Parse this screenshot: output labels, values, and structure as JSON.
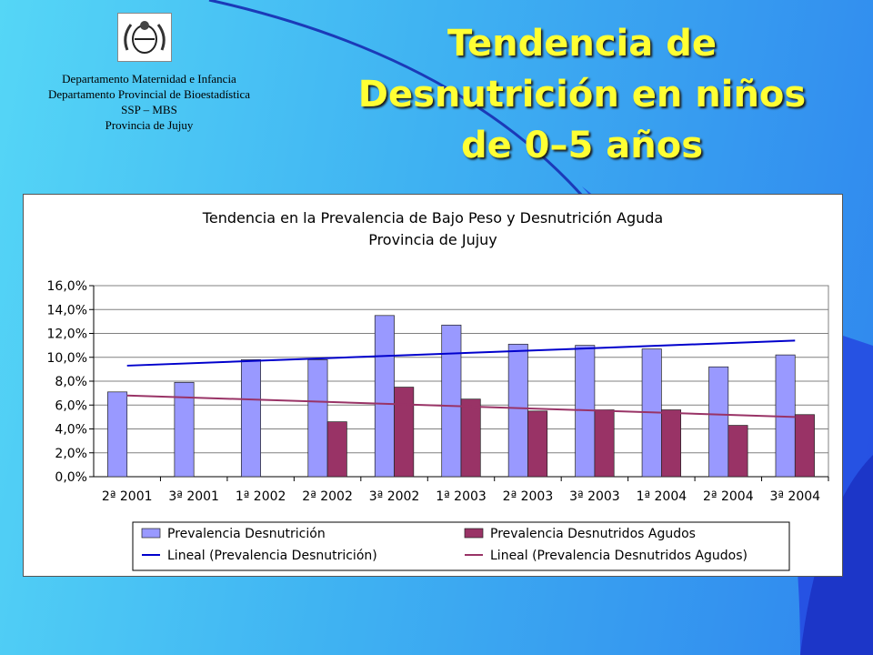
{
  "header": {
    "dept_lines": [
      "Departamento Maternidad e Infancia",
      "Departamento Provincial de Bioestadística",
      "SSP – MBS",
      "Provincia de Jujuy"
    ],
    "title_lines": [
      "Tendencia de",
      "Desnutrición en niños",
      "de 0–5 años"
    ]
  },
  "colors": {
    "bar1": "#9999ff",
    "bar2": "#993366",
    "trend1": "#0000cc",
    "trend2": "#993366",
    "title": "#ffff33"
  },
  "chart_data": {
    "type": "bar",
    "title": [
      "Tendencia en la Prevalencia de Bajo Peso y Desnutrición Aguda",
      "Provincia de Jujuy"
    ],
    "categories": [
      "2ª 2001",
      "3ª 2001",
      "1ª 2002",
      "2ª 2002",
      "3ª 2002",
      "1ª 2003",
      "2ª 2003",
      "3ª 2003",
      "1ª 2004",
      "2ª 2004",
      "3ª 2004"
    ],
    "series": [
      {
        "name": "Prevalencia Desnutrición",
        "values": [
          7.1,
          7.9,
          9.8,
          9.8,
          13.5,
          12.7,
          11.1,
          11.0,
          10.7,
          9.2,
          10.2
        ]
      },
      {
        "name": "Prevalencia Desnutridos Agudos",
        "values": [
          null,
          null,
          null,
          4.6,
          7.5,
          6.5,
          5.5,
          5.6,
          5.6,
          4.3,
          5.2
        ]
      }
    ],
    "trendlines": [
      {
        "name": "Lineal (Prevalencia Desnutrición)",
        "start": 9.3,
        "end": 11.4
      },
      {
        "name": "Lineal (Prevalencia Desnutridos Agudos)",
        "start": 6.8,
        "end": 5.0
      }
    ],
    "yticks": [
      "0,0%",
      "2,0%",
      "4,0%",
      "6,0%",
      "8,0%",
      "10,0%",
      "12,0%",
      "14,0%",
      "16,0%"
    ],
    "ylim": [
      0,
      16
    ],
    "legend_position": "bottom",
    "grid": true
  }
}
